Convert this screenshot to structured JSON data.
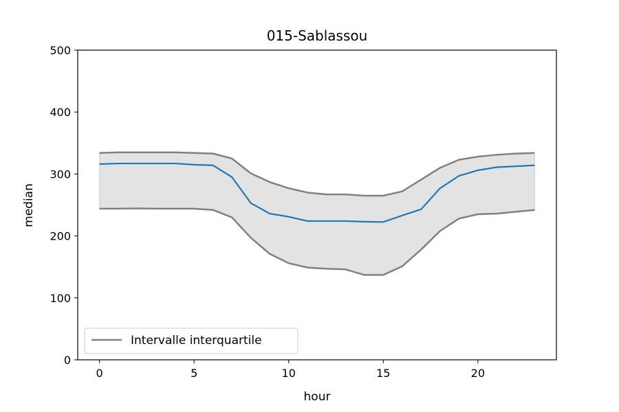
{
  "chart_data": {
    "type": "line",
    "title": "015-Sablassou",
    "xlabel": "hour",
    "ylabel": "median",
    "xlim": [
      -1.15,
      24.15
    ],
    "ylim": [
      0,
      500
    ],
    "xticks": [
      0,
      5,
      10,
      15,
      20
    ],
    "yticks": [
      0,
      100,
      200,
      300,
      400,
      500
    ],
    "grid": false,
    "legend_position": "lower-left",
    "legend": [
      "Intervalle interquartile"
    ],
    "x": [
      0,
      1,
      2,
      3,
      4,
      5,
      6,
      7,
      8,
      9,
      10,
      11,
      12,
      13,
      14,
      15,
      16,
      17,
      18,
      19,
      20,
      21,
      22,
      23
    ],
    "series": [
      {
        "role": "median",
        "color": "#1f77b4",
        "values": [
          316,
          317,
          317,
          317,
          317,
          315,
          314,
          295,
          253,
          236,
          231,
          224,
          224,
          224,
          223,
          222.5,
          233,
          243,
          277,
          297,
          306,
          311,
          312.5,
          314
        ]
      },
      {
        "role": "upper-quartile",
        "color": "#808080",
        "values": [
          334,
          335,
          335,
          335,
          335,
          334,
          333,
          325,
          301,
          287,
          277,
          270,
          267,
          267,
          265,
          265,
          272,
          291,
          310,
          323,
          328,
          331,
          333,
          334
        ]
      },
      {
        "role": "lower-quartile",
        "color": "#808080",
        "values": [
          244,
          244,
          244.5,
          244,
          244,
          244,
          242,
          230,
          197,
          171,
          156,
          149,
          147,
          146,
          137,
          137,
          151,
          178,
          208,
          228,
          235,
          236,
          239,
          242
        ]
      }
    ],
    "band_fill": "#e3e3e3"
  }
}
